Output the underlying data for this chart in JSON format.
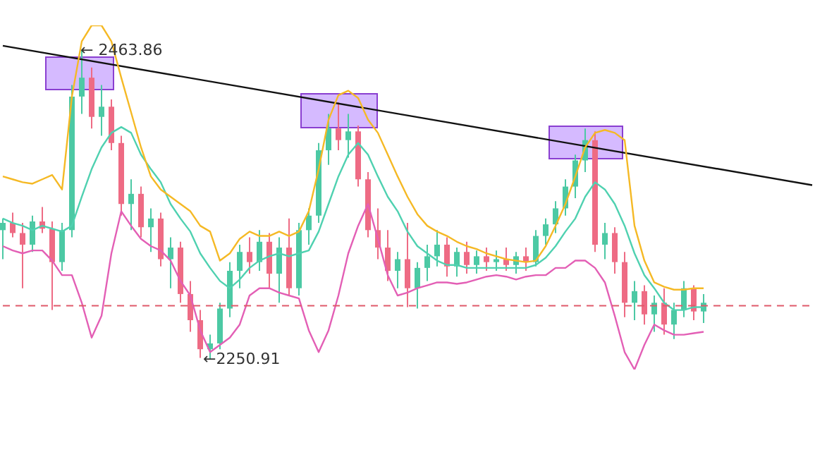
{
  "chart_data": {
    "type": "candlestick",
    "categories": [
      null,
      null,
      null,
      null,
      null,
      null,
      null,
      null,
      null,
      null,
      null,
      null,
      null,
      null,
      null,
      null,
      null,
      null,
      null,
      null,
      null,
      null,
      null,
      null,
      null,
      null,
      null,
      null,
      null,
      null,
      null,
      null,
      null,
      null,
      null,
      null,
      null,
      null,
      null,
      null,
      null,
      null,
      null,
      null,
      null,
      null,
      null,
      null,
      null,
      null,
      null,
      null,
      null,
      null,
      null,
      null,
      null,
      null,
      null,
      null,
      null,
      null,
      null,
      null,
      null,
      null,
      null,
      null,
      null,
      null,
      null,
      null,
      null,
      null,
      null,
      null,
      null,
      null,
      null,
      null,
      null,
      null,
      null
    ],
    "ohlc": [
      [
        2340,
        2348,
        2320,
        2345
      ],
      [
        2345,
        2352,
        2335,
        2338
      ],
      [
        2338,
        2345,
        2300,
        2330
      ],
      [
        2330,
        2350,
        2325,
        2346
      ],
      [
        2346,
        2356,
        2338,
        2341
      ],
      [
        2341,
        2346,
        2285,
        2318
      ],
      [
        2318,
        2345,
        2312,
        2340
      ],
      [
        2340,
        2440,
        2335,
        2432
      ],
      [
        2432,
        2463.86,
        2420,
        2445
      ],
      [
        2445,
        2452,
        2410,
        2418
      ],
      [
        2418,
        2440,
        2405,
        2425
      ],
      [
        2425,
        2430,
        2395,
        2400
      ],
      [
        2400,
        2405,
        2350,
        2358
      ],
      [
        2358,
        2375,
        2340,
        2365
      ],
      [
        2365,
        2370,
        2335,
        2342
      ],
      [
        2342,
        2355,
        2325,
        2348
      ],
      [
        2348,
        2352,
        2315,
        2320
      ],
      [
        2320,
        2335,
        2300,
        2328
      ],
      [
        2328,
        2332,
        2290,
        2296
      ],
      [
        2296,
        2305,
        2270,
        2278
      ],
      [
        2278,
        2285,
        2252,
        2258
      ],
      [
        2258,
        2268,
        2250.91,
        2262
      ],
      [
        2262,
        2290,
        2258,
        2286
      ],
      [
        2286,
        2318,
        2280,
        2312
      ],
      [
        2312,
        2330,
        2300,
        2325
      ],
      [
        2325,
        2335,
        2310,
        2318
      ],
      [
        2318,
        2340,
        2312,
        2332
      ],
      [
        2332,
        2338,
        2300,
        2310
      ],
      [
        2310,
        2335,
        2290,
        2328
      ],
      [
        2328,
        2348,
        2295,
        2300
      ],
      [
        2300,
        2345,
        2295,
        2340
      ],
      [
        2340,
        2355,
        2330,
        2350
      ],
      [
        2350,
        2400,
        2345,
        2395
      ],
      [
        2395,
        2420,
        2385,
        2410
      ],
      [
        2410,
        2428,
        2395,
        2402
      ],
      [
        2402,
        2420,
        2390,
        2408
      ],
      [
        2408,
        2412,
        2370,
        2375
      ],
      [
        2375,
        2380,
        2335,
        2340
      ],
      [
        2340,
        2355,
        2320,
        2328
      ],
      [
        2328,
        2340,
        2305,
        2312
      ],
      [
        2312,
        2325,
        2300,
        2320
      ],
      [
        2320,
        2345,
        2287,
        2300
      ],
      [
        2300,
        2318,
        2286,
        2314
      ],
      [
        2314,
        2330,
        2305,
        2322
      ],
      [
        2322,
        2340,
        2315,
        2330
      ],
      [
        2330,
        2335,
        2308,
        2315
      ],
      [
        2315,
        2328,
        2308,
        2325
      ],
      [
        2325,
        2332,
        2310,
        2316
      ],
      [
        2316,
        2326,
        2310,
        2322
      ],
      [
        2322,
        2328,
        2312,
        2318
      ],
      [
        2318,
        2326,
        2312,
        2320
      ],
      [
        2320,
        2328,
        2312,
        2316
      ],
      [
        2316,
        2325,
        2310,
        2322
      ],
      [
        2322,
        2328,
        2312,
        2318
      ],
      [
        2318,
        2340,
        2315,
        2336
      ],
      [
        2336,
        2348,
        2330,
        2344
      ],
      [
        2344,
        2360,
        2338,
        2355
      ],
      [
        2355,
        2375,
        2350,
        2370
      ],
      [
        2370,
        2392,
        2362,
        2388
      ],
      [
        2388,
        2410,
        2380,
        2402
      ],
      [
        2402,
        2408,
        2325,
        2330
      ],
      [
        2330,
        2345,
        2320,
        2338
      ],
      [
        2338,
        2342,
        2310,
        2318
      ],
      [
        2318,
        2325,
        2280,
        2290
      ],
      [
        2290,
        2305,
        2278,
        2298
      ],
      [
        2298,
        2302,
        2275,
        2282
      ],
      [
        2282,
        2295,
        2270,
        2290
      ],
      [
        2290,
        2300,
        2268,
        2275
      ],
      [
        2275,
        2290,
        2265,
        2285
      ],
      [
        2285,
        2305,
        2280,
        2300
      ],
      [
        2300,
        2302,
        2278,
        2284
      ],
      [
        2284,
        2296,
        2276,
        2290
      ],
      null,
      null,
      null,
      null,
      null,
      null,
      null,
      null,
      null,
      null,
      null
    ],
    "colors": [
      "#4cc9a4",
      "#ee6b84",
      "#ee6b84",
      "#4cc9a4",
      "#ee6b84",
      "#ee6b84",
      "#4cc9a4",
      "#4cc9a4",
      "#4cc9a4",
      "#ee6b84",
      "#4cc9a4",
      "#ee6b84",
      "#ee6b84",
      "#4cc9a4",
      "#ee6b84",
      "#4cc9a4",
      "#ee6b84",
      "#4cc9a4",
      "#ee6b84",
      "#ee6b84",
      "#ee6b84",
      "#4cc9a4",
      "#4cc9a4",
      "#4cc9a4",
      "#4cc9a4",
      "#ee6b84",
      "#4cc9a4",
      "#ee6b84",
      "#4cc9a4",
      "#ee6b84",
      "#4cc9a4",
      "#4cc9a4",
      "#4cc9a4",
      "#4cc9a4",
      "#ee6b84",
      "#4cc9a4",
      "#ee6b84",
      "#ee6b84",
      "#ee6b84",
      "#ee6b84",
      "#4cc9a4",
      "#ee6b84",
      "#4cc9a4",
      "#4cc9a4",
      "#4cc9a4",
      "#ee6b84",
      "#4cc9a4",
      "#ee6b84",
      "#4cc9a4",
      "#ee6b84",
      "#4cc9a4",
      "#ee6b84",
      "#4cc9a4",
      "#ee6b84",
      "#4cc9a4",
      "#4cc9a4",
      "#4cc9a4",
      "#4cc9a4",
      "#4cc9a4",
      "#4cc9a4",
      "#ee6b84",
      "#4cc9a4",
      "#ee6b84",
      "#ee6b84",
      "#4cc9a4",
      "#ee6b84",
      "#4cc9a4",
      "#ee6b84",
      "#4cc9a4",
      "#4cc9a4",
      "#ee6b84",
      "#4cc9a4",
      null,
      null,
      null,
      null,
      null,
      null,
      null,
      null,
      null,
      null,
      null
    ],
    "series": [
      {
        "type": "line",
        "color": "#f5b925",
        "values": [
          2377,
          2375,
          2373,
          2372,
          2375,
          2378,
          2368,
          2432,
          2470,
          2481,
          2481,
          2470,
          2445,
          2421,
          2397,
          2377,
          2368,
          2363,
          2358,
          2353,
          2343,
          2339,
          2319,
          2324,
          2334,
          2339,
          2336,
          2336,
          2339,
          2336,
          2339,
          2353,
          2382,
          2416,
          2433,
          2436,
          2431,
          2416,
          2407,
          2392,
          2377,
          2363,
          2351,
          2343,
          2339,
          2336,
          2332,
          2329,
          2327,
          2324,
          2322,
          2320,
          2319,
          2318,
          2319,
          2329,
          2343,
          2358,
          2377,
          2397,
          2407,
          2409,
          2407,
          2402,
          2343,
          2319,
          2304,
          2301,
          2299,
          2299,
          2300,
          2300,
          null,
          null,
          null,
          null,
          null,
          null,
          null,
          null,
          null,
          null,
          null
        ]
      },
      {
        "type": "line",
        "color": "#4fd1b0",
        "values": [
          2348,
          2345,
          2343,
          2340,
          2343,
          2341,
          2339,
          2343,
          2363,
          2382,
          2397,
          2407,
          2411,
          2407,
          2392,
          2382,
          2373,
          2358,
          2348,
          2339,
          2324,
          2314,
          2305,
          2300,
          2306,
          2314,
          2319,
          2322,
          2324,
          2322,
          2324,
          2326,
          2339,
          2358,
          2377,
          2392,
          2400,
          2392,
          2377,
          2363,
          2353,
          2339,
          2329,
          2324,
          2319,
          2316,
          2316,
          2314,
          2314,
          2314,
          2314,
          2314,
          2314,
          2314,
          2316,
          2321,
          2329,
          2339,
          2348,
          2363,
          2373,
          2368,
          2358,
          2343,
          2324,
          2309,
          2300,
          2290,
          2285,
          2285,
          2287,
          2287,
          null,
          null,
          null,
          null,
          null,
          null,
          null,
          null,
          null,
          null,
          null
        ]
      },
      {
        "type": "line",
        "color": "#e35fb5",
        "values": [
          2329,
          2326,
          2324,
          2326,
          2326,
          2319,
          2309,
          2309,
          2290,
          2266,
          2281,
          2324,
          2353,
          2343,
          2334,
          2329,
          2326,
          2319,
          2305,
          2295,
          2271,
          2256,
          2261,
          2266,
          2275,
          2295,
          2300,
          2300,
          2297,
          2295,
          2293,
          2271,
          2256,
          2271,
          2295,
          2324,
          2343,
          2358,
          2334,
          2309,
          2295,
          2297,
          2300,
          2302,
          2304,
          2304,
          2303,
          2304,
          2306,
          2308,
          2309,
          2308,
          2306,
          2308,
          2309,
          2309,
          2314,
          2314,
          2319,
          2319,
          2314,
          2304,
          2281,
          2256,
          2244,
          2261,
          2275,
          2271,
          2268,
          2268,
          2269,
          2270,
          null,
          null,
          null,
          null,
          null,
          null,
          null,
          null,
          null,
          null,
          null
        ]
      },
      {
        "type": "line",
        "color": "#111111",
        "values": [
          2467,
          null,
          null,
          null,
          null,
          null,
          null,
          null,
          null,
          null,
          null,
          null,
          null,
          null,
          null,
          null,
          null,
          null,
          null,
          null,
          null,
          null,
          null,
          null,
          null,
          null,
          null,
          null,
          null,
          null,
          null,
          null,
          null,
          null,
          null,
          null,
          null,
          null,
          null,
          null,
          null,
          null,
          null,
          null,
          null,
          null,
          null,
          null,
          null,
          null,
          null,
          null,
          null,
          null,
          null,
          null,
          null,
          null,
          null,
          null,
          null,
          null,
          null,
          null,
          null,
          null,
          null,
          null,
          null,
          null,
          null,
          null,
          null,
          null,
          null,
          null,
          null,
          null,
          null,
          null,
          null,
          null,
          2371
        ]
      }
    ],
    "ref_lines": [
      {
        "axis": "y",
        "value": 2288,
        "color": "#e05a6a",
        "line_style": "dashed"
      }
    ],
    "annotations": [
      "← 2463.86",
      "←2250.91"
    ]
  }
}
